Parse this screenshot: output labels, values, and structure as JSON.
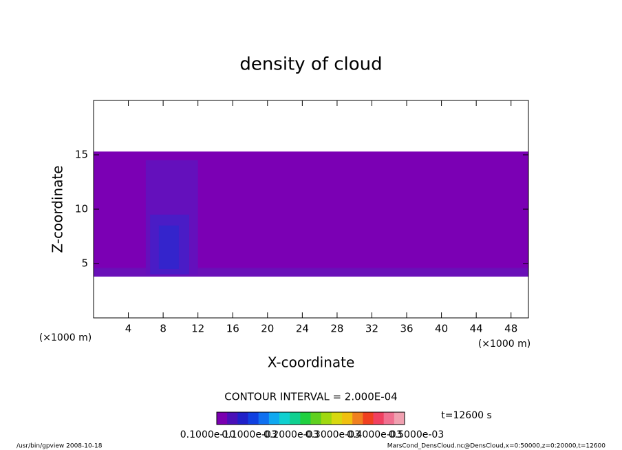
{
  "chart_data": {
    "type": "contour",
    "title": "density of cloud",
    "x_label": "X-coordinate",
    "y_label": "Z-coordinate",
    "x_unit": "(×1000 m)",
    "y_unit": "(×1000 m)",
    "xlim": [
      0,
      50
    ],
    "ylim": [
      0,
      20
    ],
    "xticks": [
      4,
      8,
      12,
      16,
      20,
      24,
      28,
      32,
      36,
      40,
      44,
      48
    ],
    "yticks": [
      5,
      10,
      15
    ],
    "regions": [
      {
        "x": [
          0,
          50
        ],
        "z": [
          3.8,
          15.3
        ],
        "color": "#7b00b4"
      },
      {
        "x": [
          0,
          50
        ],
        "z": [
          3.8,
          4.6
        ],
        "color": "#6a10b8"
      },
      {
        "x": [
          6,
          12
        ],
        "z": [
          4,
          14.5
        ],
        "color": "#6410bc"
      },
      {
        "x": [
          6.5,
          11
        ],
        "z": [
          4,
          9.5
        ],
        "color": "#4a1cc6"
      },
      {
        "x": [
          7.5,
          9.8
        ],
        "z": [
          4.5,
          8.5
        ],
        "color": "#3424cc"
      }
    ],
    "contour_interval": "CONTOUR INTERVAL = 2.000E-04",
    "time": "t=12600 s",
    "colorbar": {
      "colors": [
        "#7a00b0",
        "#4a10b8",
        "#2020c8",
        "#1040e0",
        "#1070f0",
        "#10a8f0",
        "#10d0d0",
        "#10d090",
        "#20d040",
        "#60d020",
        "#a0d810",
        "#d8d810",
        "#f0c010",
        "#f08020",
        "#f04020",
        "#f04060",
        "#f07090",
        "#f0a0b0"
      ],
      "labels": [
        "0.1000e-10",
        "0.1000e-03",
        "0.2000e-03",
        "0.3000e-03",
        "0.4000e-03",
        "0.5000e-03"
      ]
    },
    "footer_left": "/usr/bin/gpview   2008-10-18",
    "footer_right": "MarsCond_DensCloud.nc@DensCloud,x=0:50000,z=0:20000,t=12600"
  }
}
